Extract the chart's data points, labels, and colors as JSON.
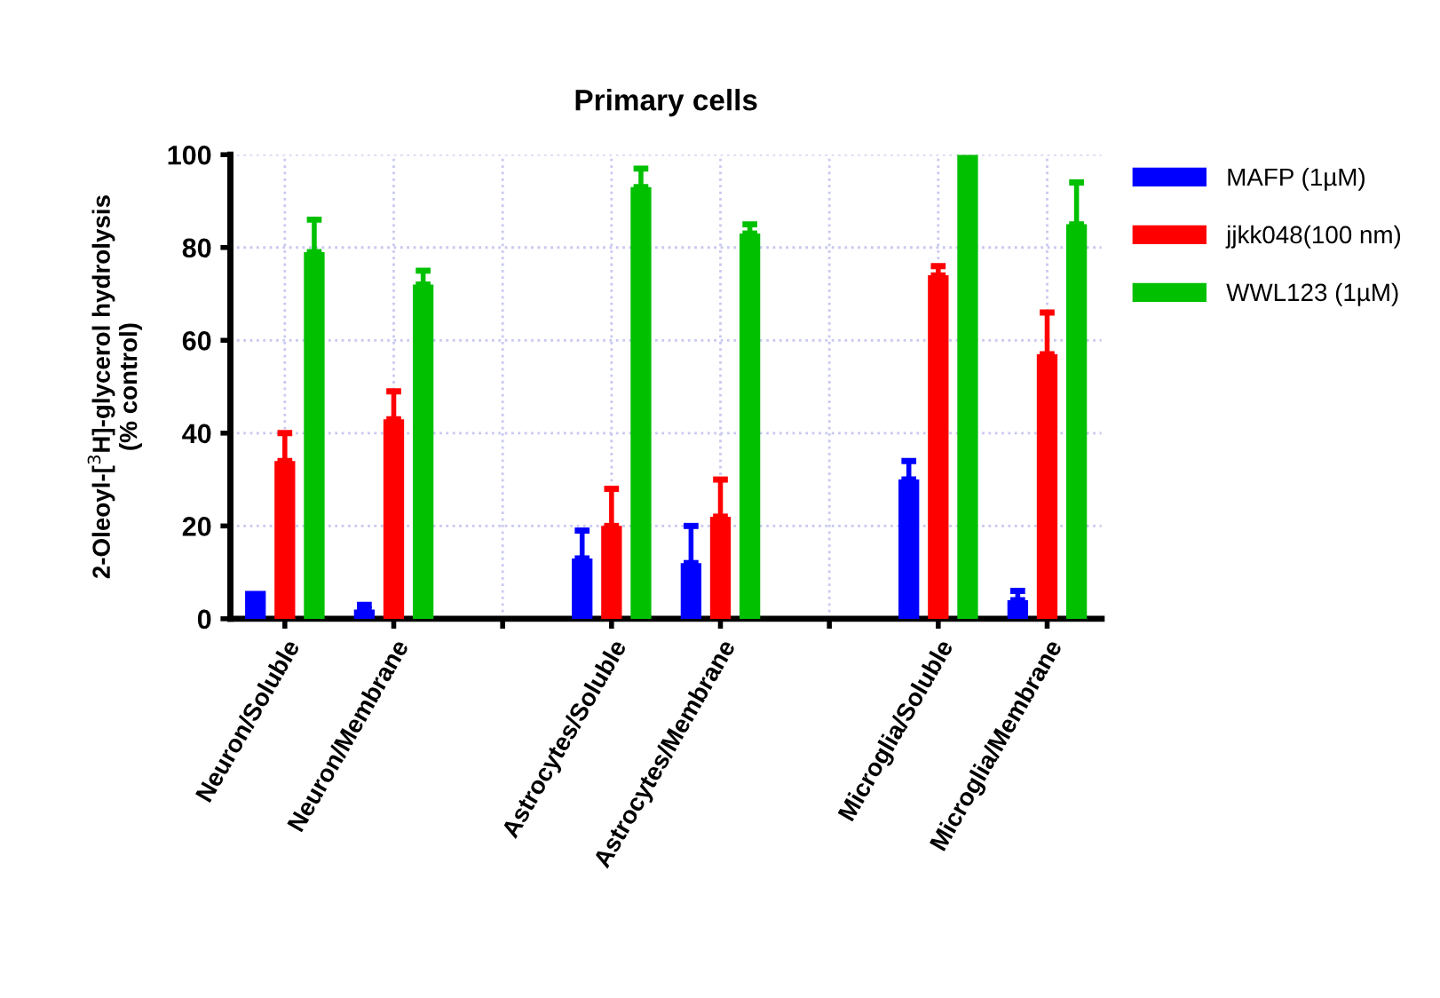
{
  "chart_data": {
    "type": "bar",
    "title": "Primary cells",
    "ylabel": "2-Oleoyl-[$^{3}$H]-glycerol hydrolysis\n(% control)",
    "categories": [
      "Neuron/Soluble",
      "Neuron/Membrane",
      null,
      "Astrocytes/Soluble",
      "Astrocytes/Membrane",
      null,
      "Microglia/Soluble",
      "Microglia/Membrane"
    ],
    "series": [
      {
        "name": "MAFP (1µM)",
        "color": "#0000ff",
        "values": [
          6,
          2,
          null,
          13,
          12,
          null,
          30,
          4
        ],
        "errors": [
          null,
          [
            2,
            3
          ],
          null,
          [
            13,
            19
          ],
          [
            12,
            20
          ],
          null,
          [
            30,
            34
          ],
          [
            4,
            6
          ]
        ]
      },
      {
        "name": "jjkk048(100 nm)",
        "color": "#ff0000",
        "values": [
          34,
          43,
          null,
          20,
          22,
          null,
          74,
          57
        ],
        "errors": [
          [
            34,
            40
          ],
          [
            43,
            49
          ],
          null,
          [
            20,
            28
          ],
          [
            22,
            30
          ],
          null,
          [
            74,
            76
          ],
          [
            57,
            66
          ]
        ]
      },
      {
        "name": "WWL123 (1µM)",
        "color": "#00c000",
        "values": [
          79,
          72,
          null,
          93,
          83,
          null,
          100,
          85
        ],
        "errors": [
          [
            79,
            86
          ],
          [
            72,
            75
          ],
          null,
          [
            93,
            97
          ],
          [
            83,
            85
          ],
          null,
          null,
          [
            85,
            94
          ]
        ]
      }
    ],
    "ylim": [
      0,
      100
    ],
    "yticks": [
      0,
      20,
      40,
      60,
      80,
      100
    ],
    "grid": true,
    "legend": "right"
  }
}
